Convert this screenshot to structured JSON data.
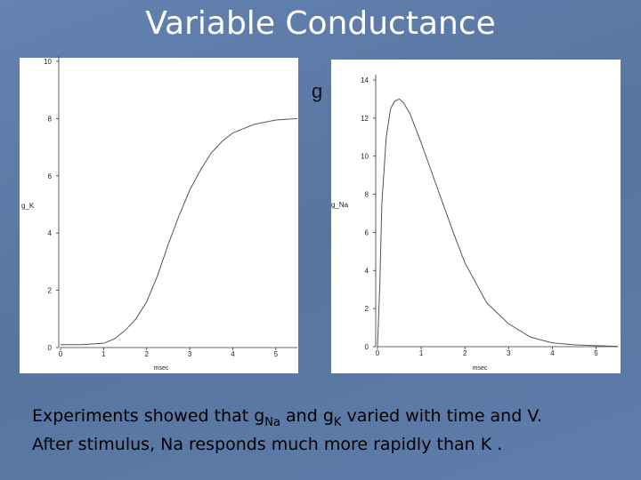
{
  "title": "Variable Conductance",
  "overlay_text": "g",
  "caption": {
    "line1": [
      "Experiments showed that g",
      "Na",
      " and g",
      "K",
      " varied with time and V."
    ],
    "line2": "After stimulus, Na responds much more rapidly than K ."
  },
  "chart_data": [
    {
      "type": "line",
      "xlabel": "msec",
      "ylabel": "g_K",
      "x": [
        0,
        0.5,
        1,
        1.25,
        1.5,
        1.75,
        2,
        2.25,
        2.5,
        2.75,
        3,
        3.25,
        3.5,
        3.75,
        4,
        4.5,
        5,
        5.5
      ],
      "values": [
        0.1,
        0.1,
        0.15,
        0.3,
        0.6,
        1.0,
        1.6,
        2.5,
        3.6,
        4.6,
        5.5,
        6.2,
        6.8,
        7.2,
        7.5,
        7.8,
        7.95,
        8.0
      ],
      "color": "#555555",
      "xlim": [
        0,
        5.5
      ],
      "xticks": [
        0,
        1,
        2,
        3,
        4,
        5
      ],
      "ylim": [
        0,
        10
      ],
      "yticks": [
        0,
        2,
        4,
        6,
        8,
        10
      ]
    },
    {
      "type": "line",
      "xlabel": "msec",
      "ylabel": "g_Na",
      "x": [
        0,
        0.05,
        0.1,
        0.2,
        0.3,
        0.4,
        0.5,
        0.6,
        0.75,
        1,
        1.25,
        1.5,
        1.75,
        2,
        2.5,
        3,
        3.5,
        4,
        4.5,
        5,
        5.5
      ],
      "values": [
        0,
        3,
        7.5,
        11,
        12.5,
        12.9,
        13,
        12.8,
        12.2,
        10.7,
        9.1,
        7.5,
        5.9,
        4.4,
        2.3,
        1.2,
        0.5,
        0.2,
        0.1,
        0.05,
        0.02
      ],
      "color": "#555555",
      "xlim": [
        0,
        5.5
      ],
      "xticks": [
        0,
        1,
        2,
        3,
        4,
        5
      ],
      "ylim": [
        0,
        14
      ],
      "yticks": [
        0,
        2,
        4,
        6,
        8,
        10,
        12,
        14
      ]
    }
  ]
}
